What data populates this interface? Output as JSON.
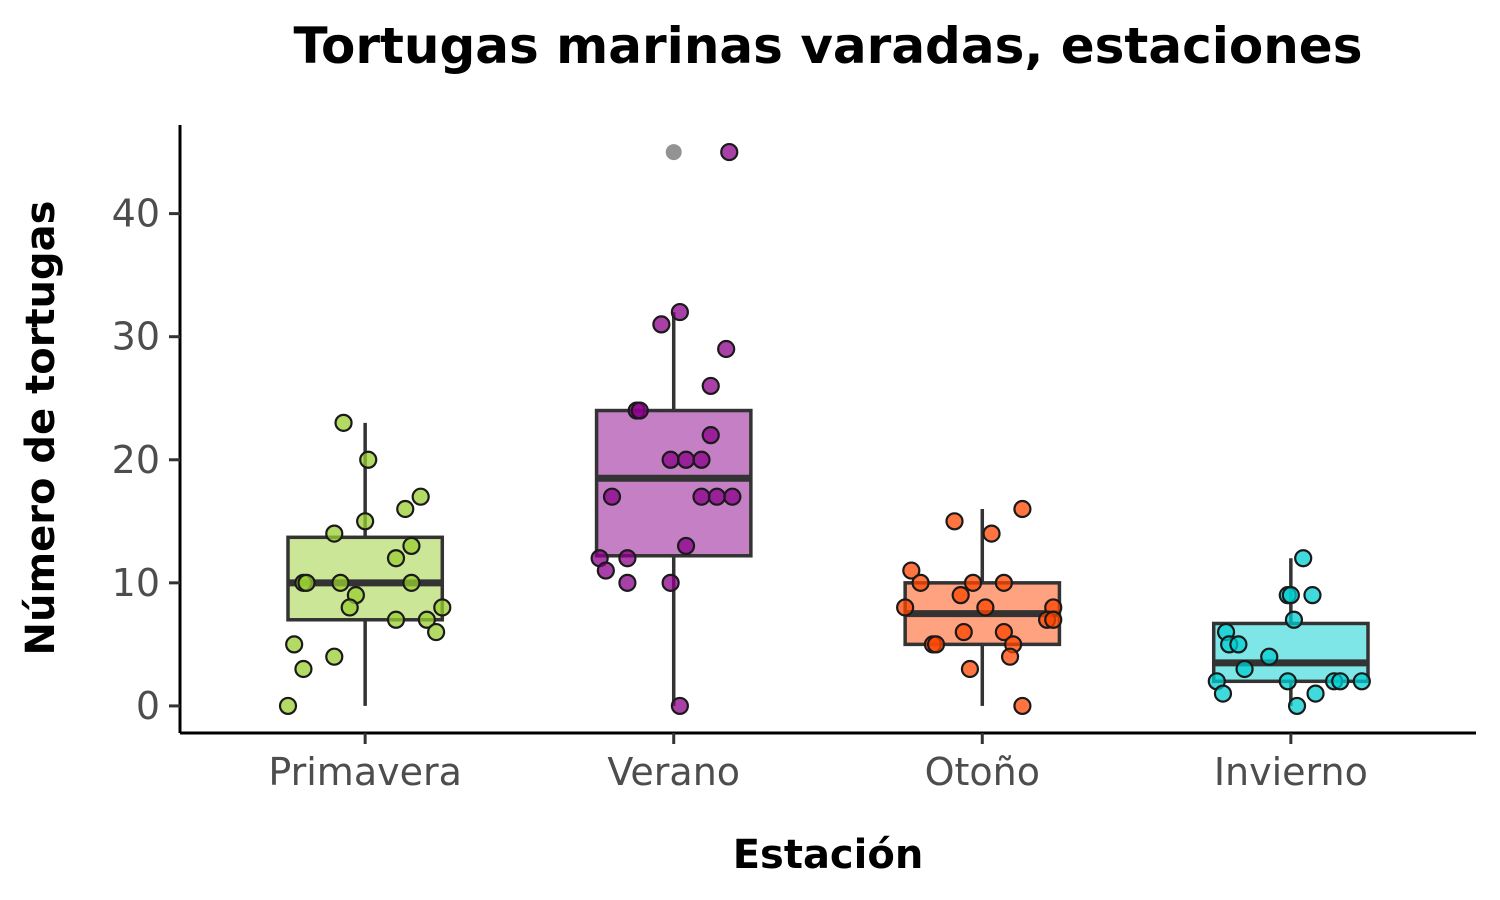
{
  "chart_data": {
    "type": "box",
    "title": "Tortugas marinas varadas, estaciones",
    "xlabel": "Estación",
    "ylabel": "Número de tortugas",
    "categories": [
      "Primavera",
      "Verano",
      "Otoño",
      "Invierno"
    ],
    "y_ticks": [
      0,
      10,
      20,
      30,
      40
    ],
    "ylim": [
      -2.2,
      47.2
    ],
    "grid": false,
    "legend": "none",
    "outlier_color": "#808080",
    "boxes": [
      {
        "category": "Primavera",
        "color": "#9acd32",
        "min": 0,
        "q1": 7,
        "median": 10,
        "q3": 13.7,
        "max": 23,
        "outliers": []
      },
      {
        "category": "Verano",
        "color": "#8b008b",
        "min": 0,
        "q1": 12.2,
        "median": 18.5,
        "q3": 24,
        "max": 32,
        "outliers": [
          45
        ]
      },
      {
        "category": "Otoño",
        "color": "#ff4500",
        "min": 0,
        "q1": 5,
        "median": 7.5,
        "q3": 10,
        "max": 16,
        "outliers": []
      },
      {
        "category": "Invierno",
        "color": "#00ced1",
        "min": 0,
        "q1": 2,
        "median": 3.5,
        "q3": 6.7,
        "max": 12,
        "outliers": []
      }
    ],
    "points": [
      {
        "category": "Primavera",
        "values": [
          23,
          20,
          17,
          16,
          15,
          14,
          13,
          12,
          10,
          10,
          10,
          10,
          9,
          8,
          8,
          7,
          7,
          6,
          5,
          4,
          3,
          0
        ],
        "jitter": [
          -0.07,
          0.01,
          0.18,
          0.13,
          0.0,
          -0.1,
          0.15,
          0.1,
          -0.2,
          -0.19,
          -0.08,
          0.15,
          -0.03,
          -0.05,
          0.25,
          0.1,
          0.2,
          0.23,
          -0.23,
          -0.1,
          -0.2,
          -0.25
        ]
      },
      {
        "category": "Verano",
        "values": [
          45,
          32,
          31,
          29,
          26,
          24,
          24,
          22,
          20,
          20,
          20,
          17,
          17,
          17,
          17,
          13,
          12,
          12,
          11,
          10,
          10,
          0
        ],
        "jitter": [
          0.18,
          0.02,
          -0.04,
          0.17,
          0.12,
          -0.12,
          -0.11,
          0.12,
          -0.01,
          0.04,
          0.09,
          -0.2,
          0.09,
          0.14,
          0.19,
          0.04,
          -0.24,
          -0.15,
          -0.22,
          -0.15,
          -0.01,
          0.02
        ]
      },
      {
        "category": "Otoño",
        "values": [
          16,
          15,
          14,
          11,
          10,
          10,
          10,
          9,
          8,
          8,
          8,
          7,
          7,
          6,
          6,
          5,
          5,
          5,
          4,
          3,
          0
        ],
        "jitter": [
          0.13,
          -0.09,
          0.03,
          -0.23,
          -0.2,
          -0.03,
          0.07,
          -0.07,
          -0.25,
          0.01,
          0.23,
          0.21,
          0.23,
          -0.06,
          0.07,
          -0.16,
          -0.15,
          0.1,
          0.09,
          -0.04,
          0.13
        ]
      },
      {
        "category": "Invierno",
        "values": [
          12,
          9,
          9,
          9,
          7,
          6,
          5,
          5,
          4,
          3,
          2,
          2,
          2,
          2,
          2,
          1,
          1,
          0
        ],
        "jitter": [
          0.04,
          -0.01,
          0.0,
          0.07,
          0.01,
          -0.21,
          -0.2,
          -0.17,
          -0.07,
          -0.15,
          -0.24,
          -0.01,
          0.14,
          0.16,
          0.23,
          -0.22,
          0.08,
          0.02
        ]
      }
    ]
  }
}
